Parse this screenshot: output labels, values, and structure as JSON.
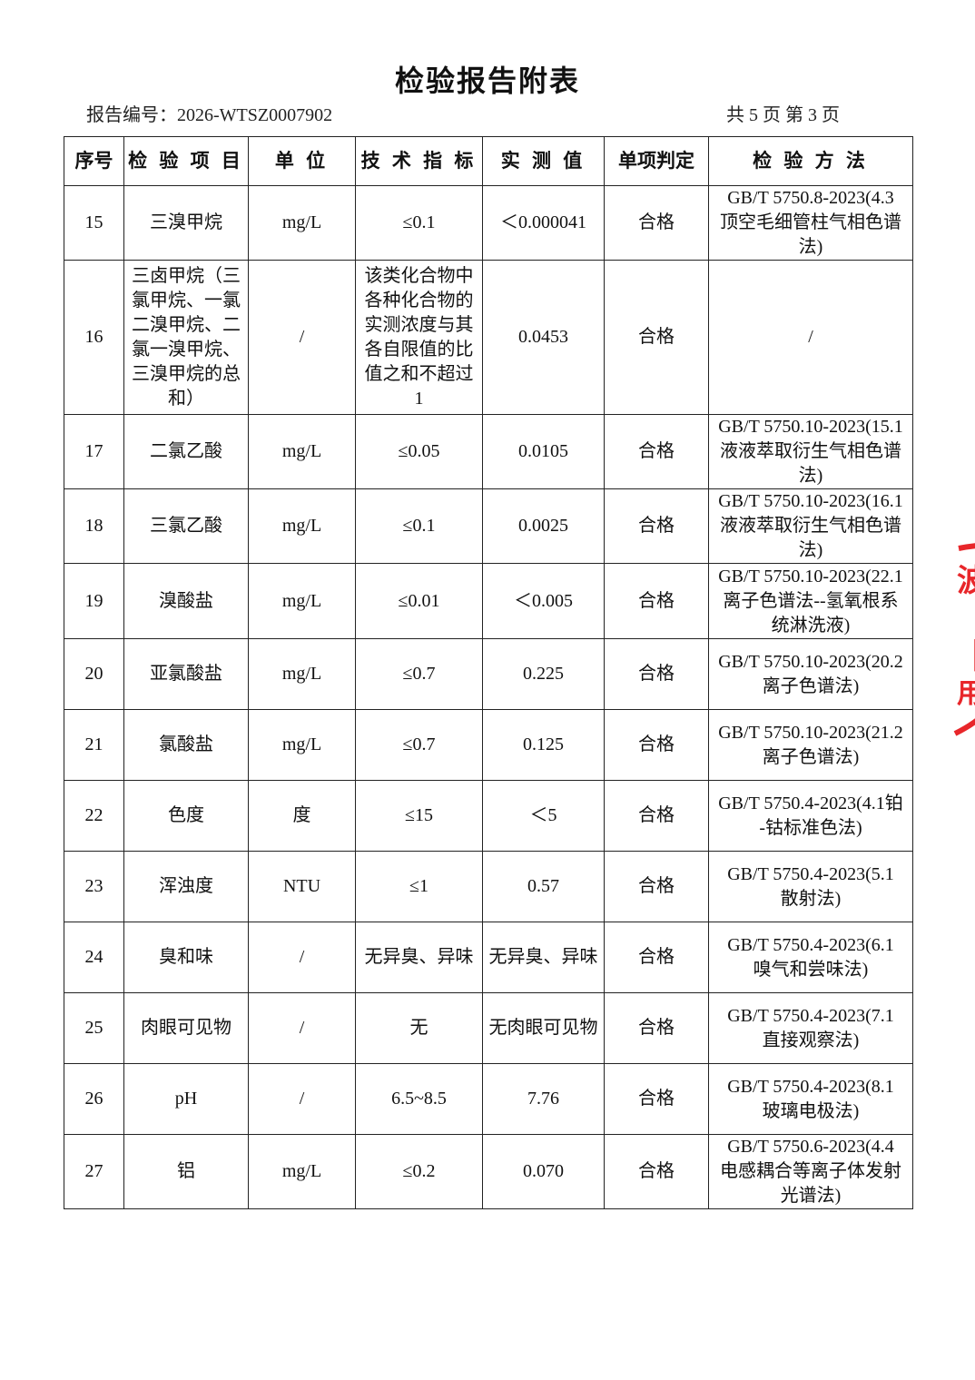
{
  "title": "检验报告附表",
  "report_no": "报告编号：2026-WTSZ0007902",
  "pages": "共 5 页  第 3 页",
  "colors": {
    "stamp": "#e8262a",
    "border": "#222222"
  },
  "headers": [
    "序号",
    "检 验 项 目",
    "单 位",
    "技 术 指 标",
    "实 测 值",
    "单项判定",
    "检 验 方 法"
  ],
  "rows": [
    {
      "no": "15",
      "item": "三溴甲烷",
      "unit": "mg/L",
      "limit": "≤0.1",
      "value": "＜0.000041",
      "result": "合格",
      "method": "GB/T 5750.8-2023(4.3\n顶空毛细管柱气相色谱\n法)"
    },
    {
      "no": "16",
      "item": "三卤甲烷（三\n氯甲烷、一氯\n二溴甲烷、二\n氯一溴甲烷、\n三溴甲烷的总\n和）",
      "unit": "/",
      "limit": "该类化合物中\n各种化合物的\n实测浓度与其\n各自限值的比\n值之和不超过\n1",
      "value": "0.0453",
      "result": "合格",
      "method": "/"
    },
    {
      "no": "17",
      "item": "二氯乙酸",
      "unit": "mg/L",
      "limit": "≤0.05",
      "value": "0.0105",
      "result": "合格",
      "method": "GB/T 5750.10-2023(15.1\n液液萃取衍生气相色谱\n法)"
    },
    {
      "no": "18",
      "item": "三氯乙酸",
      "unit": "mg/L",
      "limit": "≤0.1",
      "value": "0.0025",
      "result": "合格",
      "method": "GB/T 5750.10-2023(16.1\n液液萃取衍生气相色谱\n法)"
    },
    {
      "no": "19",
      "item": "溴酸盐",
      "unit": "mg/L",
      "limit": "≤0.01",
      "value": "＜0.005",
      "result": "合格",
      "method": "GB/T 5750.10-2023(22.1\n离子色谱法--氢氧根系\n统淋洗液)"
    },
    {
      "no": "20",
      "item": "亚氯酸盐",
      "unit": "mg/L",
      "limit": "≤0.7",
      "value": "0.225",
      "result": "合格",
      "method": "GB/T 5750.10-2023(20.2\n离子色谱法)"
    },
    {
      "no": "21",
      "item": "氯酸盐",
      "unit": "mg/L",
      "limit": "≤0.7",
      "value": "0.125",
      "result": "合格",
      "method": "GB/T 5750.10-2023(21.2\n离子色谱法)"
    },
    {
      "no": "22",
      "item": "色度",
      "unit": "度",
      "limit": "≤15",
      "value": "＜5",
      "result": "合格",
      "method": "GB/T 5750.4-2023(4.1铂\n-钴标准色法)"
    },
    {
      "no": "23",
      "item": "浑浊度",
      "unit": "NTU",
      "limit": "≤1",
      "value": "0.57",
      "result": "合格",
      "method": "GB/T 5750.4-2023(5.1\n散射法)"
    },
    {
      "no": "24",
      "item": "臭和味",
      "unit": "/",
      "limit": "无异臭、异味",
      "value": "无异臭、异味",
      "result": "合格",
      "method": "GB/T 5750.4-2023(6.1\n嗅气和尝味法)"
    },
    {
      "no": "25",
      "item": "肉眼可见物",
      "unit": "/",
      "limit": "无",
      "value": "无肉眼可见物",
      "result": "合格",
      "method": "GB/T 5750.4-2023(7.1\n直接观察法)"
    },
    {
      "no": "26",
      "item": "pH",
      "unit": "/",
      "limit": "6.5~8.5",
      "value": "7.76",
      "result": "合格",
      "method": "GB/T 5750.4-2023(8.1\n玻璃电极法)"
    },
    {
      "no": "27",
      "item": "铝",
      "unit": "mg/L",
      "limit": "≤0.2",
      "value": "0.070",
      "result": "合格",
      "method": "GB/T 5750.6-2023(4.4\n电感耦合等离子体发射\n光谱法)"
    }
  ]
}
